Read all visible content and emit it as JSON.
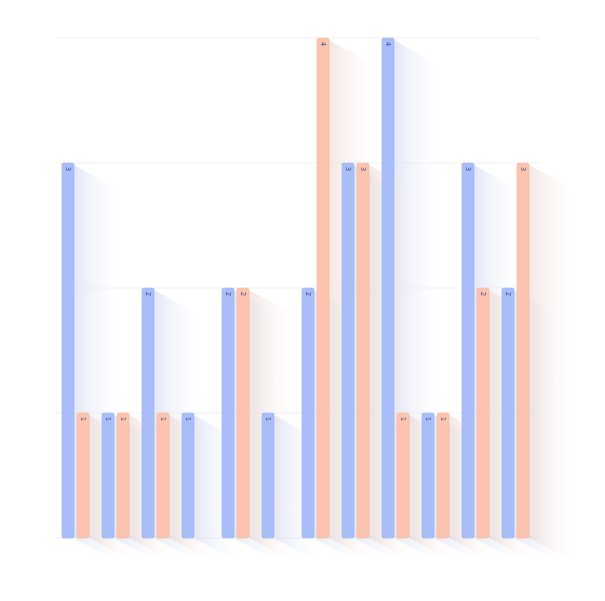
{
  "chart_data": {
    "type": "bar",
    "categories": [
      "",
      "",
      "",
      "",
      "",
      "",
      "",
      "",
      "",
      "",
      "",
      "",
      ""
    ],
    "series": [
      {
        "values": [
          3,
          1,
          2,
          1,
          2,
          1,
          2,
          3,
          4,
          1,
          3,
          2,
          null
        ],
        "color": "#a9bdf8"
      },
      {
        "values": [
          1,
          1,
          1,
          null,
          2,
          null,
          4,
          3,
          1,
          1,
          2,
          3,
          null
        ],
        "color": "#fcc4ae"
      }
    ],
    "ylim": [
      0,
      4
    ],
    "grid": true,
    "legend": "none",
    "data_labels": true
  }
}
